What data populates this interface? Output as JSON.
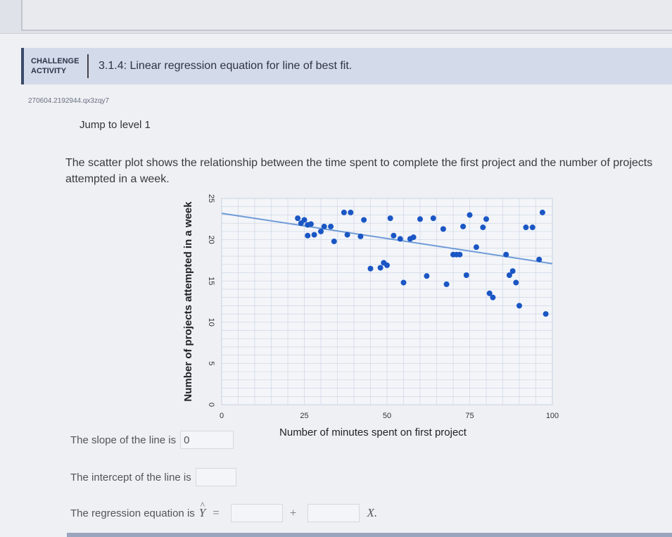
{
  "header": {
    "badge_line1": "CHALLENGE",
    "badge_line2": "ACTIVITY",
    "title": "3.1.4: Linear regression equation for line of best fit."
  },
  "activity_id": "270604.2192944.qx3zqy7",
  "jump_label": "Jump to level 1",
  "prompt": "The scatter plot shows the relationship between the time spent to complete the first project and the number of projects attempted in a week.",
  "questions": {
    "slope_label": "The slope of the line is",
    "slope_value": "0",
    "intercept_label": "The intercept of the line is",
    "intercept_value": "",
    "equation_label": "The regression equation is",
    "yhat": "Y",
    "hat": "^",
    "equals": "=",
    "plus": "+",
    "xvar": "X."
  },
  "colors": {
    "point": "#1a56c4",
    "line": "#6f9bd6",
    "grid": "#c8d2e0"
  },
  "chart_data": {
    "type": "scatter",
    "xlabel": "Number of minutes spent on first project",
    "ylabel": "Number of projects attempted in a week",
    "xlim": [
      0,
      100
    ],
    "ylim": [
      0,
      25
    ],
    "xticks": [
      0,
      25,
      50,
      75,
      100
    ],
    "yticks": [
      0,
      5,
      10,
      15,
      20,
      25
    ],
    "grid": true,
    "trend_line": {
      "x": [
        0,
        100
      ],
      "y": [
        23.2,
        17.1
      ]
    },
    "points": [
      [
        23,
        22.6
      ],
      [
        24,
        22.0
      ],
      [
        25,
        22.4
      ],
      [
        26,
        21.8
      ],
      [
        27,
        21.9
      ],
      [
        26,
        20.5
      ],
      [
        28,
        20.6
      ],
      [
        30,
        21.0
      ],
      [
        31,
        21.6
      ],
      [
        33,
        21.6
      ],
      [
        34,
        19.8
      ],
      [
        37,
        23.3
      ],
      [
        39,
        23.3
      ],
      [
        38,
        20.6
      ],
      [
        42,
        20.4
      ],
      [
        43,
        22.4
      ],
      [
        45,
        16.5
      ],
      [
        48,
        16.6
      ],
      [
        49,
        17.2
      ],
      [
        50,
        16.9
      ],
      [
        51,
        22.6
      ],
      [
        52,
        20.5
      ],
      [
        54,
        20.1
      ],
      [
        55,
        14.8
      ],
      [
        57,
        20.1
      ],
      [
        58,
        20.3
      ],
      [
        60,
        22.5
      ],
      [
        62,
        15.6
      ],
      [
        64,
        22.6
      ],
      [
        67,
        21.3
      ],
      [
        68,
        14.6
      ],
      [
        70,
        18.2
      ],
      [
        71,
        18.2
      ],
      [
        72,
        18.2
      ],
      [
        73,
        21.6
      ],
      [
        74,
        15.7
      ],
      [
        75,
        23.0
      ],
      [
        77,
        19.1
      ],
      [
        79,
        21.5
      ],
      [
        80,
        22.5
      ],
      [
        81,
        13.5
      ],
      [
        82,
        13.0
      ],
      [
        86,
        18.2
      ],
      [
        87,
        15.7
      ],
      [
        88,
        16.2
      ],
      [
        89,
        14.8
      ],
      [
        90,
        12.0
      ],
      [
        92,
        21.5
      ],
      [
        94,
        21.5
      ],
      [
        96,
        17.6
      ],
      [
        97,
        23.3
      ],
      [
        98,
        11.0
      ]
    ]
  }
}
